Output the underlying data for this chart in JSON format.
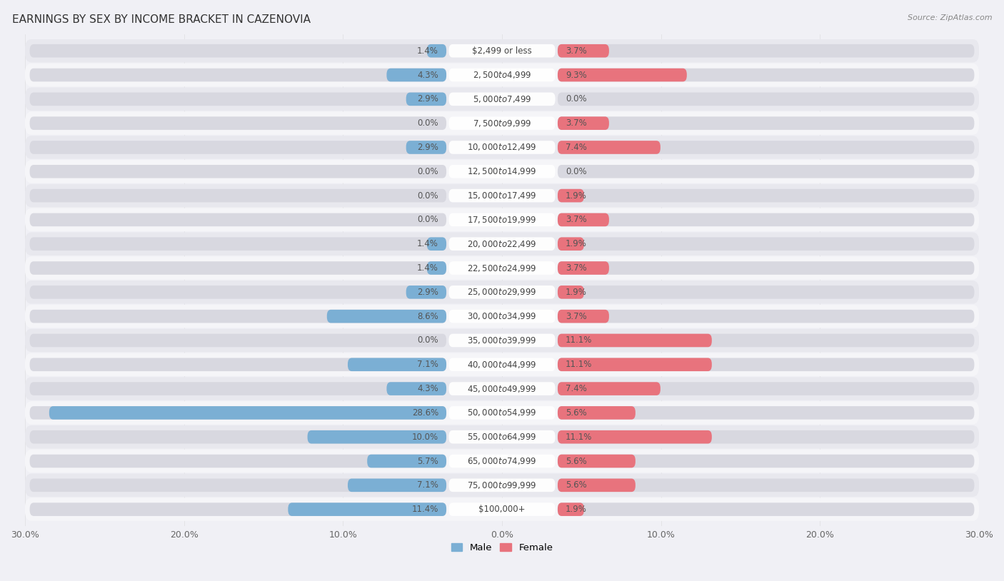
{
  "title": "EARNINGS BY SEX BY INCOME BRACKET IN CAZENOVIA",
  "source": "Source: ZipAtlas.com",
  "categories": [
    "$2,499 or less",
    "$2,500 to $4,999",
    "$5,000 to $7,499",
    "$7,500 to $9,999",
    "$10,000 to $12,499",
    "$12,500 to $14,999",
    "$15,000 to $17,499",
    "$17,500 to $19,999",
    "$20,000 to $22,499",
    "$22,500 to $24,999",
    "$25,000 to $29,999",
    "$30,000 to $34,999",
    "$35,000 to $39,999",
    "$40,000 to $44,999",
    "$45,000 to $49,999",
    "$50,000 to $54,999",
    "$55,000 to $64,999",
    "$65,000 to $74,999",
    "$75,000 to $99,999",
    "$100,000+"
  ],
  "male": [
    1.4,
    4.3,
    2.9,
    0.0,
    2.9,
    0.0,
    0.0,
    0.0,
    1.4,
    1.4,
    2.9,
    8.6,
    0.0,
    7.1,
    4.3,
    28.6,
    10.0,
    5.7,
    7.1,
    11.4
  ],
  "female": [
    3.7,
    9.3,
    0.0,
    3.7,
    7.4,
    0.0,
    1.9,
    3.7,
    1.9,
    3.7,
    1.9,
    3.7,
    11.1,
    11.1,
    7.4,
    5.6,
    11.1,
    5.6,
    5.6,
    1.9
  ],
  "male_color": "#7bafd4",
  "female_color": "#e8737d",
  "male_label": "Male",
  "female_label": "Female",
  "xlim": 30.0,
  "row_bg_even": "#e8e8ee",
  "row_bg_odd": "#f5f5f8",
  "bar_track_color": "#d8d8e0",
  "label_bg": "#ffffff",
  "title_fontsize": 11,
  "label_fontsize": 8.5,
  "tick_fontsize": 9,
  "value_fontsize": 8.5
}
